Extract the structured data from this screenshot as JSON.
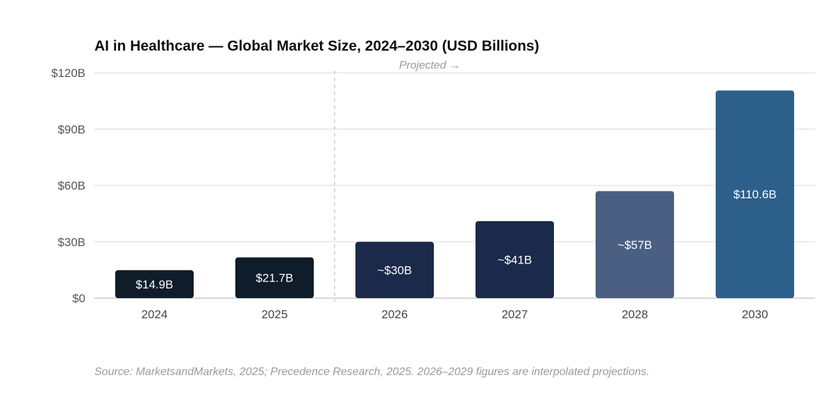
{
  "chart_data": {
    "type": "bar",
    "title": "AI in Healthcare — Global Market Size, 2024–2030 (USD Billions)",
    "categories": [
      "2024",
      "2025",
      "2026",
      "2027",
      "2028",
      "2030"
    ],
    "values": [
      14.9,
      21.7,
      30,
      41,
      57,
      110.6
    ],
    "data_labels": [
      "$14.9B",
      "$21.7B",
      "~$30B",
      "~$41B",
      "~$57B",
      "$110.6B"
    ],
    "colors": [
      "#0f1c2a",
      "#0f1c2a",
      "#1b2a4a",
      "#1b2a4a",
      "#4a5f82",
      "#2c5f8a"
    ],
    "y_ticks": [
      {
        "value": 0,
        "label": "$0"
      },
      {
        "value": 30,
        "label": "$30B"
      },
      {
        "value": 60,
        "label": "$60B"
      },
      {
        "value": 90,
        "label": "$90B"
      },
      {
        "value": 120,
        "label": "$120B"
      }
    ],
    "ylim": [
      0,
      120
    ],
    "xlabel": "",
    "ylabel": "",
    "grid": true,
    "projection_annotation": {
      "label": "Projected →",
      "after_category": "2025"
    },
    "source": "Source: MarketsandMarkets, 2025; Precedence Research, 2025. 2026–2029 figures are interpolated projections."
  }
}
